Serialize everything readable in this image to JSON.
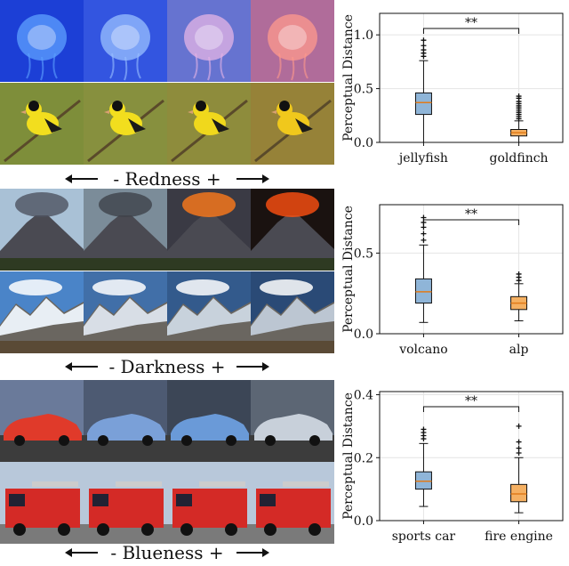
{
  "groups": [
    {
      "caption": "- Redness +",
      "rows": [
        {
          "subject": "jellyfish",
          "tiles": [
            "#1c3fd6",
            "#3355e0",
            "#6673d0",
            "#b06c9a"
          ],
          "accent": [
            "#5ea2ff",
            "#9ac0ff",
            "#e6b4e6",
            "#ff9a8c"
          ]
        },
        {
          "subject": "goldfinch",
          "tiles": [
            "#7e8e3a",
            "#87903e",
            "#8e8c3c",
            "#968238"
          ],
          "accent": [
            "#f2de1e",
            "#f2de1e",
            "#f0d81c",
            "#f0c81c"
          ]
        }
      ]
    },
    {
      "caption": "- Darkness +",
      "rows": [
        {
          "subject": "volcano",
          "tiles": [
            "#a9c1d6",
            "#7b8c99",
            "#3a3a44",
            "#1a1210"
          ],
          "accent": [
            "#4d5360",
            "#3e424a",
            "#ff7a1a",
            "#ff5010"
          ]
        },
        {
          "subject": "alp",
          "tiles": [
            "#4a84c8",
            "#416fa8",
            "#335a8c",
            "#2a4a76"
          ],
          "accent": [
            "#e8eef4",
            "#d8dee6",
            "#c8d2dc",
            "#bcc6d2"
          ]
        }
      ]
    },
    {
      "caption": "- Blueness +",
      "rows": [
        {
          "subject": "sports car",
          "tiles": [
            "#6a7a9a",
            "#4d5a72",
            "#3c4656",
            "#5c6674"
          ],
          "accent": [
            "#e03a2a",
            "#7aa0d8",
            "#6a9ad8",
            "#c8d0da"
          ]
        },
        {
          "subject": "fire engine",
          "tiles": [
            "#b8c8da",
            "#b8c8da",
            "#b8c8da",
            "#b8c8da"
          ],
          "accent": [
            "#d42a26",
            "#d42a26",
            "#d42a26",
            "#d42a26"
          ]
        }
      ]
    }
  ],
  "chart_data": [
    {
      "type": "box",
      "ylabel": "Perceptual Distance",
      "ylim": [
        0,
        1.2
      ],
      "yticks": [
        "0.0",
        "0.5",
        "1.0"
      ],
      "ytick_values": [
        0,
        0.5,
        1.0
      ],
      "categories": [
        "jellyfish",
        "goldfinch"
      ],
      "boxes": [
        {
          "name": "jellyfish",
          "color": "#8fb5d8",
          "whisker_low": 0.0,
          "q1": 0.26,
          "median": 0.37,
          "q3": 0.46,
          "whisker_high": 0.76,
          "fliers": [
            0.8,
            0.83,
            0.86,
            0.9,
            0.95
          ]
        },
        {
          "name": "goldfinch",
          "color": "#f5b062",
          "whisker_low": 0.0,
          "q1": 0.06,
          "median": 0.09,
          "q3": 0.12,
          "whisker_high": 0.2,
          "fliers": [
            0.22,
            0.24,
            0.26,
            0.28,
            0.3,
            0.32,
            0.34,
            0.36,
            0.38,
            0.41,
            0.43
          ]
        }
      ],
      "significance": "**"
    },
    {
      "type": "box",
      "ylabel": "Perceptual Distance",
      "ylim": [
        0,
        0.8
      ],
      "yticks": [
        "0.0",
        "0.5"
      ],
      "ytick_values": [
        0,
        0.5
      ],
      "categories": [
        "volcano",
        "alp"
      ],
      "boxes": [
        {
          "name": "volcano",
          "color": "#8fb5d8",
          "whisker_low": 0.07,
          "q1": 0.19,
          "median": 0.26,
          "q3": 0.34,
          "whisker_high": 0.55,
          "fliers": [
            0.58,
            0.62,
            0.66,
            0.69,
            0.72
          ]
        },
        {
          "name": "alp",
          "color": "#f5b062",
          "whisker_low": 0.08,
          "q1": 0.15,
          "median": 0.19,
          "q3": 0.23,
          "whisker_high": 0.31,
          "fliers": [
            0.33,
            0.35,
            0.37
          ]
        }
      ],
      "significance": "**"
    },
    {
      "type": "box",
      "ylabel": "Perceptual Distance",
      "ylim": [
        0,
        0.41
      ],
      "yticks": [
        "0.0",
        "0.2",
        "0.4"
      ],
      "ytick_values": [
        0,
        0.2,
        0.4
      ],
      "categories": [
        "sports car",
        "fire engine"
      ],
      "boxes": [
        {
          "name": "sports car",
          "color": "#8fb5d8",
          "whisker_low": 0.045,
          "q1": 0.1,
          "median": 0.125,
          "q3": 0.155,
          "whisker_high": 0.245,
          "fliers": [
            0.26,
            0.27,
            0.28,
            0.29
          ]
        },
        {
          "name": "fire engine",
          "color": "#f5b062",
          "whisker_low": 0.025,
          "q1": 0.06,
          "median": 0.085,
          "q3": 0.115,
          "whisker_high": 0.2,
          "fliers": [
            0.215,
            0.23,
            0.25,
            0.3
          ]
        }
      ],
      "significance": "**"
    }
  ]
}
